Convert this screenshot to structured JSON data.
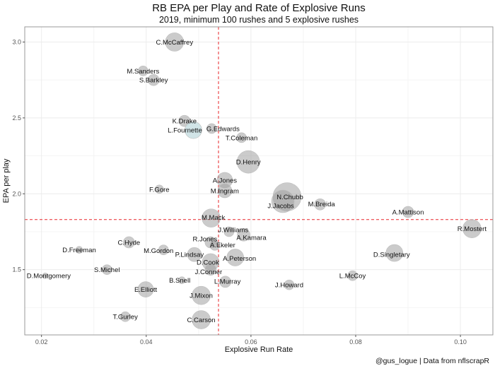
{
  "chart_data": {
    "type": "scatter",
    "title": "RB EPA per Play and Rate of Explosive Runs",
    "subtitle": "2019, minimum 100 rushes and 5 explosive rushes",
    "xlabel": "Explosive Run Rate",
    "ylabel": "EPA per play",
    "caption": "@gus_logue | Data from nflscrapR",
    "xlim": [
      0.0168,
      0.1062
    ],
    "ylim": [
      1.07,
      3.1
    ],
    "x_ticks": [
      0.02,
      0.04,
      0.06,
      0.08,
      0.1
    ],
    "x_tick_labels": [
      "0.02",
      "0.04",
      "0.06",
      "0.08",
      "0.10"
    ],
    "y_ticks": [
      1.5,
      2.0,
      2.5,
      3.0
    ],
    "y_tick_labels": [
      "1.5",
      "2.0",
      "2.5",
      "3.0"
    ],
    "grid": true,
    "reference_lines": {
      "vertical_x": 0.0538,
      "horizontal_y": 1.83,
      "color": "#e8262b",
      "style": "dashed"
    },
    "colors": {
      "point": "#a0a0a0",
      "highlight": "#c9dfe3",
      "panel_border": "#999999",
      "grid": "#ececec"
    },
    "points": [
      {
        "name": "C.McCaffrey",
        "x": 0.0454,
        "y": 3.0,
        "size": 13
      },
      {
        "name": "M.Sanders",
        "x": 0.0394,
        "y": 2.81,
        "size": 7
      },
      {
        "name": "S.Barkley",
        "x": 0.0414,
        "y": 2.75,
        "size": 8
      },
      {
        "name": "K.Drake",
        "x": 0.0473,
        "y": 2.48,
        "size": 8
      },
      {
        "name": "L.Fournette",
        "x": 0.049,
        "y": 2.42,
        "size": 12,
        "highlight": true
      },
      {
        "name": "G.Edwards",
        "x": 0.0525,
        "y": 2.43,
        "size": 7
      },
      {
        "name": "T.Coleman",
        "x": 0.0582,
        "y": 2.37,
        "size": 7
      },
      {
        "name": "D.Henry",
        "x": 0.0595,
        "y": 2.21,
        "size": 16
      },
      {
        "name": "A.Jones",
        "x": 0.055,
        "y": 2.09,
        "size": 11
      },
      {
        "name": "M.Ingram",
        "x": 0.055,
        "y": 2.02,
        "size": 10
      },
      {
        "name": "F.Gore",
        "x": 0.0425,
        "y": 2.03,
        "size": 6
      },
      {
        "name": "N.Chubb",
        "x": 0.0669,
        "y": 1.98,
        "size": 20
      },
      {
        "name": "J.Jacobs",
        "x": 0.0661,
        "y": 1.95,
        "size": 16
      },
      {
        "name": "M.Breida",
        "x": 0.0732,
        "y": 1.93,
        "size": 8
      },
      {
        "name": "A.Mattison",
        "x": 0.09,
        "y": 1.88,
        "size": 8
      },
      {
        "name": "M.Mack",
        "x": 0.0524,
        "y": 1.84,
        "size": 13
      },
      {
        "name": "R.Mostert",
        "x": 0.1022,
        "y": 1.77,
        "size": 13
      },
      {
        "name": "J.Williams",
        "x": 0.0558,
        "y": 1.75,
        "size": 7
      },
      {
        "name": "A.Kamara",
        "x": 0.0586,
        "y": 1.73,
        "size": 9
      },
      {
        "name": "C.Hyde",
        "x": 0.0367,
        "y": 1.68,
        "size": 8
      },
      {
        "name": "D.Freeman",
        "x": 0.0272,
        "y": 1.63,
        "size": 5
      },
      {
        "name": "R.Jones",
        "x": 0.0523,
        "y": 1.68,
        "size": 8
      },
      {
        "name": "A.Ekeler",
        "x": 0.0531,
        "y": 1.66,
        "size": 7
      },
      {
        "name": "M.Gordon",
        "x": 0.0433,
        "y": 1.63,
        "size": 7
      },
      {
        "name": "P.Lindsay",
        "x": 0.0492,
        "y": 1.6,
        "size": 10
      },
      {
        "name": "A.Peterson",
        "x": 0.057,
        "y": 1.58,
        "size": 12
      },
      {
        "name": "D.Cook",
        "x": 0.0523,
        "y": 1.55,
        "size": 12
      },
      {
        "name": "D.Singletary",
        "x": 0.0874,
        "y": 1.61,
        "size": 12
      },
      {
        "name": "S.Michel",
        "x": 0.0325,
        "y": 1.5,
        "size": 7
      },
      {
        "name": "J.Conner",
        "x": 0.0523,
        "y": 1.5,
        "size": 8
      },
      {
        "name": "D.Montgomery",
        "x": 0.0207,
        "y": 1.46,
        "size": 4
      },
      {
        "name": "L.McCoy",
        "x": 0.0794,
        "y": 1.46,
        "size": 7
      },
      {
        "name": "B.Snell",
        "x": 0.0468,
        "y": 1.43,
        "size": 5
      },
      {
        "name": "L.Murray",
        "x": 0.0551,
        "y": 1.42,
        "size": 8
      },
      {
        "name": "J.Howard",
        "x": 0.0673,
        "y": 1.4,
        "size": 7
      },
      {
        "name": "E.Elliott",
        "x": 0.0399,
        "y": 1.37,
        "size": 11
      },
      {
        "name": "J.Mixon",
        "x": 0.0505,
        "y": 1.33,
        "size": 13
      },
      {
        "name": "T.Gurley",
        "x": 0.036,
        "y": 1.19,
        "size": 7
      },
      {
        "name": "C.Carson",
        "x": 0.0505,
        "y": 1.17,
        "size": 13
      }
    ]
  }
}
